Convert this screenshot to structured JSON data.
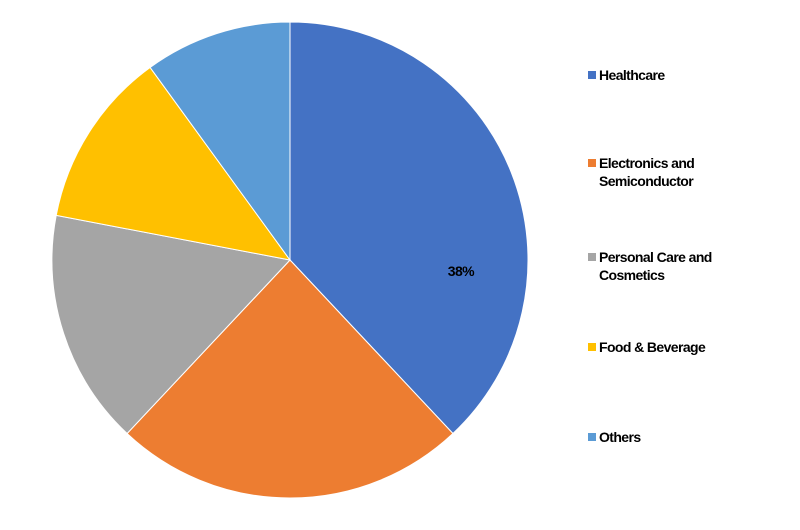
{
  "chart_data": {
    "type": "pie",
    "categories": [
      "Healthcare",
      "Electronics and Semiconductor",
      "Personal Care and Cosmetics",
      "Food & Beverage",
      "Others"
    ],
    "values": [
      38,
      24,
      16,
      12,
      10
    ],
    "value_labels": [
      "38%",
      null,
      null,
      null,
      null
    ],
    "colors": [
      "#4472c4",
      "#ed7d31",
      "#a5a5a5",
      "#ffc000",
      "#5b9bd5"
    ],
    "legend": "right"
  }
}
